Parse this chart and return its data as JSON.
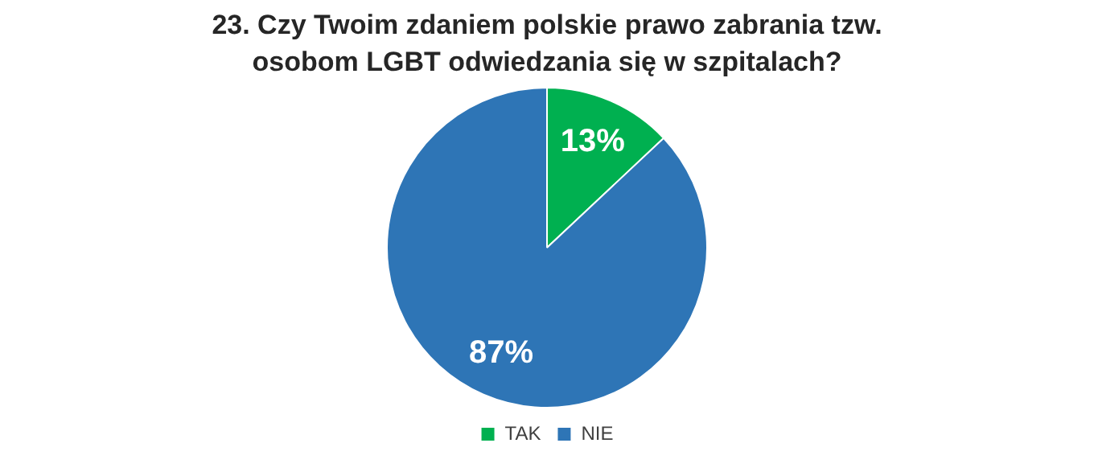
{
  "chart_data": {
    "type": "pie",
    "title": "23. Czy Twoim zdaniem polskie prawo zabrania tzw. osobom LGBT odwiedzania się w szpitalach?",
    "categories": [
      "TAK",
      "NIE"
    ],
    "values": [
      13,
      87
    ],
    "colors": [
      "#00b050",
      "#2e75b6"
    ],
    "value_labels": [
      "13%",
      "87%"
    ],
    "legend": "bottom"
  }
}
